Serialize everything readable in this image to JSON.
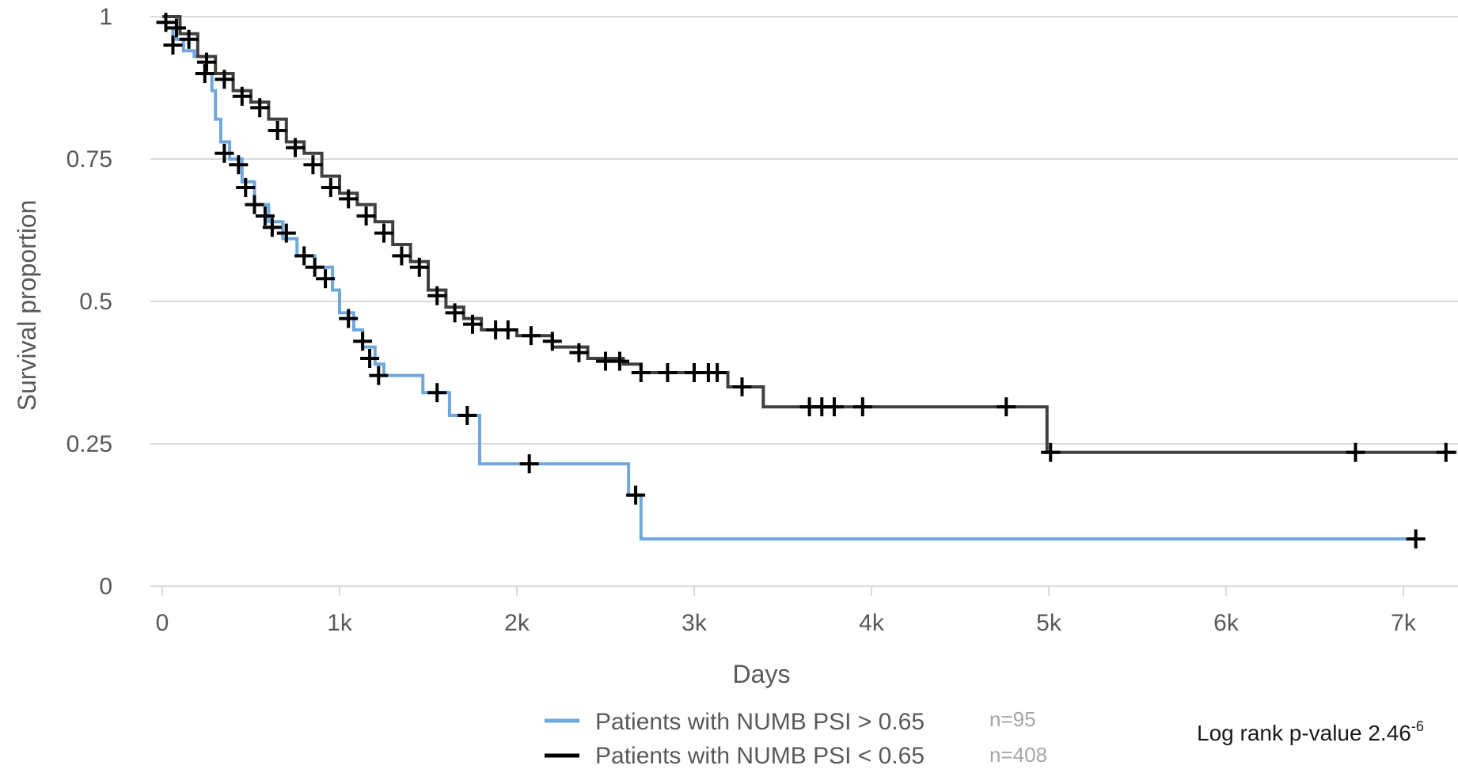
{
  "chart_data": {
    "type": "line",
    "subtype": "kaplan-meier",
    "xlabel": "Days",
    "ylabel": "Survival proportion",
    "xlim": [
      -100,
      7300
    ],
    "ylim": [
      0,
      1
    ],
    "x_ticks": [
      0,
      1000,
      2000,
      3000,
      4000,
      5000,
      6000,
      7000
    ],
    "x_tick_labels": [
      "0",
      "1k",
      "2k",
      "3k",
      "4k",
      "5k",
      "6k",
      "7k"
    ],
    "y_ticks": [
      0,
      0.25,
      0.5,
      0.75,
      1
    ],
    "y_tick_labels": [
      "0",
      "0.25",
      "0.5",
      "0.75",
      "1"
    ],
    "grid": "horizontal",
    "legend_position": "bottom",
    "annotation": "Log rank p-value 2.46",
    "annotation_superscript": "-6",
    "series": [
      {
        "name": "Patients with NUMB PSI > 0.65",
        "n_label": "n=95",
        "color": "#6fa8dc",
        "steps": [
          [
            0,
            1.0
          ],
          [
            20,
            0.98
          ],
          [
            60,
            0.96
          ],
          [
            120,
            0.94
          ],
          [
            180,
            0.93
          ],
          [
            250,
            0.9
          ],
          [
            280,
            0.87
          ],
          [
            300,
            0.82
          ],
          [
            330,
            0.78
          ],
          [
            380,
            0.75
          ],
          [
            450,
            0.71
          ],
          [
            520,
            0.67
          ],
          [
            600,
            0.64
          ],
          [
            680,
            0.61
          ],
          [
            760,
            0.58
          ],
          [
            860,
            0.56
          ],
          [
            960,
            0.52
          ],
          [
            1000,
            0.48
          ],
          [
            1080,
            0.45
          ],
          [
            1130,
            0.42
          ],
          [
            1200,
            0.39
          ],
          [
            1250,
            0.37
          ],
          [
            1470,
            0.34
          ],
          [
            1620,
            0.3
          ],
          [
            1790,
            0.215
          ],
          [
            2630,
            0.16
          ],
          [
            2700,
            0.083
          ],
          [
            7070,
            0.083
          ]
        ],
        "censored": [
          [
            60,
            0.95
          ],
          [
            240,
            0.9
          ],
          [
            350,
            0.76
          ],
          [
            430,
            0.74
          ],
          [
            470,
            0.7
          ],
          [
            520,
            0.67
          ],
          [
            580,
            0.65
          ],
          [
            620,
            0.63
          ],
          [
            700,
            0.62
          ],
          [
            800,
            0.58
          ],
          [
            860,
            0.56
          ],
          [
            920,
            0.54
          ],
          [
            1050,
            0.47
          ],
          [
            1130,
            0.43
          ],
          [
            1170,
            0.4
          ],
          [
            1220,
            0.37
          ],
          [
            1550,
            0.34
          ],
          [
            1720,
            0.3
          ],
          [
            2070,
            0.215
          ],
          [
            2670,
            0.16
          ],
          [
            7070,
            0.083
          ]
        ]
      },
      {
        "name": "Patients with NUMB PSI < 0.65",
        "n_label": "n=408",
        "color": "#404040",
        "steps": [
          [
            0,
            1.0
          ],
          [
            100,
            0.97
          ],
          [
            200,
            0.93
          ],
          [
            300,
            0.9
          ],
          [
            400,
            0.87
          ],
          [
            500,
            0.85
          ],
          [
            600,
            0.82
          ],
          [
            700,
            0.78
          ],
          [
            800,
            0.76
          ],
          [
            900,
            0.72
          ],
          [
            1000,
            0.69
          ],
          [
            1100,
            0.67
          ],
          [
            1200,
            0.64
          ],
          [
            1300,
            0.6
          ],
          [
            1400,
            0.57
          ],
          [
            1500,
            0.52
          ],
          [
            1600,
            0.49
          ],
          [
            1700,
            0.47
          ],
          [
            1800,
            0.45
          ],
          [
            2000,
            0.44
          ],
          [
            2200,
            0.42
          ],
          [
            2400,
            0.4
          ],
          [
            2600,
            0.39
          ],
          [
            2700,
            0.375
          ],
          [
            3190,
            0.35
          ],
          [
            3390,
            0.315
          ],
          [
            4990,
            0.235
          ],
          [
            7300,
            0.235
          ]
        ],
        "censored": [
          [
            20,
            0.99
          ],
          [
            80,
            0.98
          ],
          [
            150,
            0.96
          ],
          [
            250,
            0.92
          ],
          [
            350,
            0.89
          ],
          [
            450,
            0.86
          ],
          [
            550,
            0.84
          ],
          [
            650,
            0.8
          ],
          [
            750,
            0.77
          ],
          [
            850,
            0.74
          ],
          [
            950,
            0.7
          ],
          [
            1050,
            0.68
          ],
          [
            1150,
            0.65
          ],
          [
            1250,
            0.62
          ],
          [
            1350,
            0.58
          ],
          [
            1450,
            0.56
          ],
          [
            1550,
            0.51
          ],
          [
            1650,
            0.48
          ],
          [
            1750,
            0.46
          ],
          [
            1880,
            0.45
          ],
          [
            1950,
            0.45
          ],
          [
            2080,
            0.44
          ],
          [
            2200,
            0.43
          ],
          [
            2350,
            0.41
          ],
          [
            2500,
            0.395
          ],
          [
            2580,
            0.395
          ],
          [
            2700,
            0.375
          ],
          [
            2850,
            0.375
          ],
          [
            3000,
            0.375
          ],
          [
            3080,
            0.375
          ],
          [
            3130,
            0.375
          ],
          [
            3270,
            0.35
          ],
          [
            3650,
            0.315
          ],
          [
            3720,
            0.315
          ],
          [
            3790,
            0.315
          ],
          [
            3950,
            0.315
          ],
          [
            4760,
            0.315
          ],
          [
            5010,
            0.235
          ],
          [
            6730,
            0.235
          ],
          [
            7240,
            0.235
          ]
        ]
      }
    ]
  }
}
